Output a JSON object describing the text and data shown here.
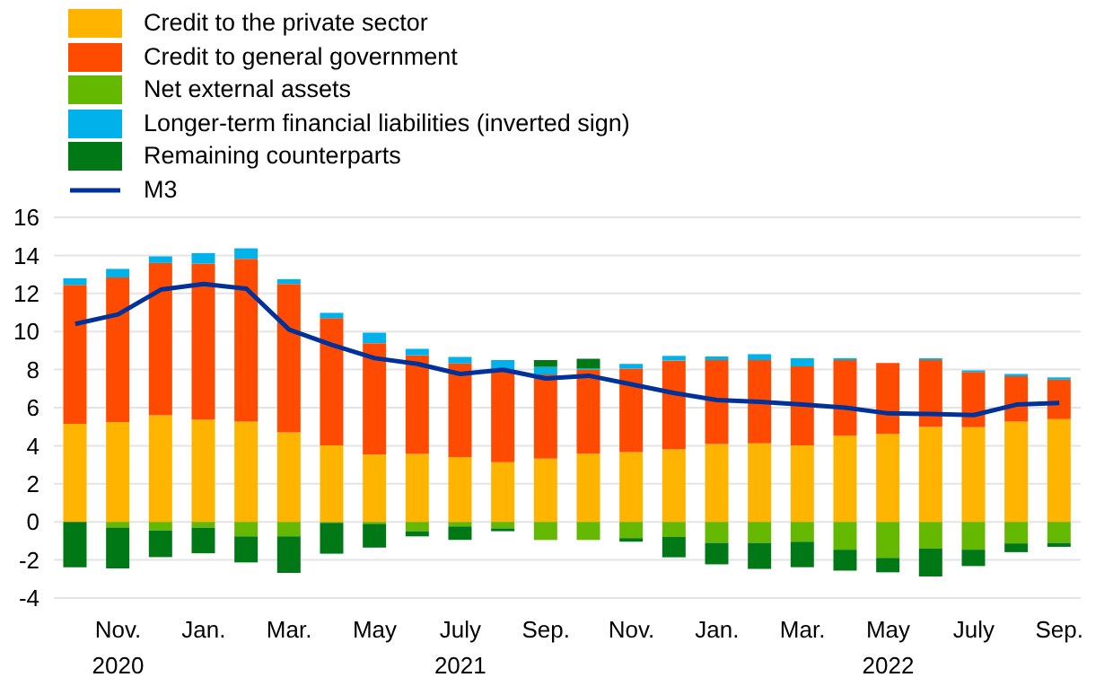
{
  "chart_data": {
    "type": "bar",
    "stacked": true,
    "categories": [
      null,
      "Nov.\n2020",
      null,
      "Jan.",
      null,
      "Mar.",
      null,
      "May",
      null,
      "July\n2021",
      null,
      "Sep.",
      null,
      "Nov.",
      null,
      "Jan.",
      null,
      "Mar.",
      null,
      "May\n2022",
      null,
      "July",
      null,
      "Sep."
    ],
    "series": [
      {
        "name": "Credit to the private sector",
        "color": "#ffb400",
        "values": [
          5.15,
          5.24,
          5.6,
          5.37,
          5.27,
          4.7,
          4.02,
          3.54,
          3.57,
          3.41,
          3.14,
          3.32,
          3.6,
          3.66,
          3.81,
          4.09,
          4.12,
          4.02,
          4.54,
          4.63,
          5.0,
          4.97,
          5.27,
          5.4
        ]
      },
      {
        "name": "Credit to general government",
        "color": "#ff4b00",
        "values": [
          7.3,
          7.6,
          8.0,
          8.2,
          8.55,
          7.8,
          6.68,
          5.85,
          5.18,
          4.91,
          4.88,
          4.42,
          4.39,
          4.39,
          4.67,
          4.41,
          4.38,
          4.15,
          3.96,
          3.72,
          3.5,
          2.9,
          2.38,
          2.07
        ]
      },
      {
        "name": "Net external assets",
        "color": "#65b800",
        "values": [
          0,
          -0.3,
          -0.45,
          -0.3,
          -0.76,
          -0.76,
          -0.05,
          -0.1,
          -0.49,
          -0.24,
          -0.34,
          -0.95,
          -0.95,
          -0.85,
          -0.79,
          -1.1,
          -1.1,
          -1.04,
          -1.46,
          -1.89,
          -1.4,
          -1.46,
          -1.13,
          -1.1
        ]
      },
      {
        "name": "Longer-term financial liabilities (inverted sign)",
        "color": "#00b1ea",
        "values": [
          0.35,
          0.45,
          0.35,
          0.55,
          0.55,
          0.25,
          0.28,
          0.55,
          0.34,
          0.34,
          0.48,
          0.4,
          0.06,
          0.25,
          0.24,
          0.19,
          0.31,
          0.43,
          0.1,
          0,
          0.1,
          0.09,
          0.12,
          0.12
        ]
      },
      {
        "name": "Remaining counterparts",
        "color": "#007816",
        "values": [
          -2.38,
          -2.14,
          -1.4,
          -1.35,
          -1.37,
          -1.92,
          -1.62,
          -1.25,
          -0.27,
          -0.71,
          -0.15,
          0.36,
          0.52,
          -0.19,
          -1.07,
          -1.13,
          -1.37,
          -1.34,
          -1.1,
          -0.76,
          -1.47,
          -0.86,
          -0.46,
          -0.21
        ]
      },
      {
        "name": "M3",
        "type": "line",
        "color": "#003299",
        "values": [
          10.4,
          10.9,
          12.2,
          12.5,
          12.25,
          10.1,
          9.3,
          8.6,
          8.3,
          7.77,
          7.99,
          7.53,
          7.68,
          7.23,
          6.77,
          6.4,
          6.31,
          6.16,
          6.0,
          5.7,
          5.67,
          5.61,
          6.16,
          6.25
        ]
      }
    ],
    "ylim": [
      -4,
      16
    ],
    "yticks": [
      -4,
      -2,
      0,
      2,
      4,
      6,
      8,
      10,
      12,
      14,
      16
    ],
    "grid": "y",
    "legend": "top left",
    "marker": "none"
  }
}
